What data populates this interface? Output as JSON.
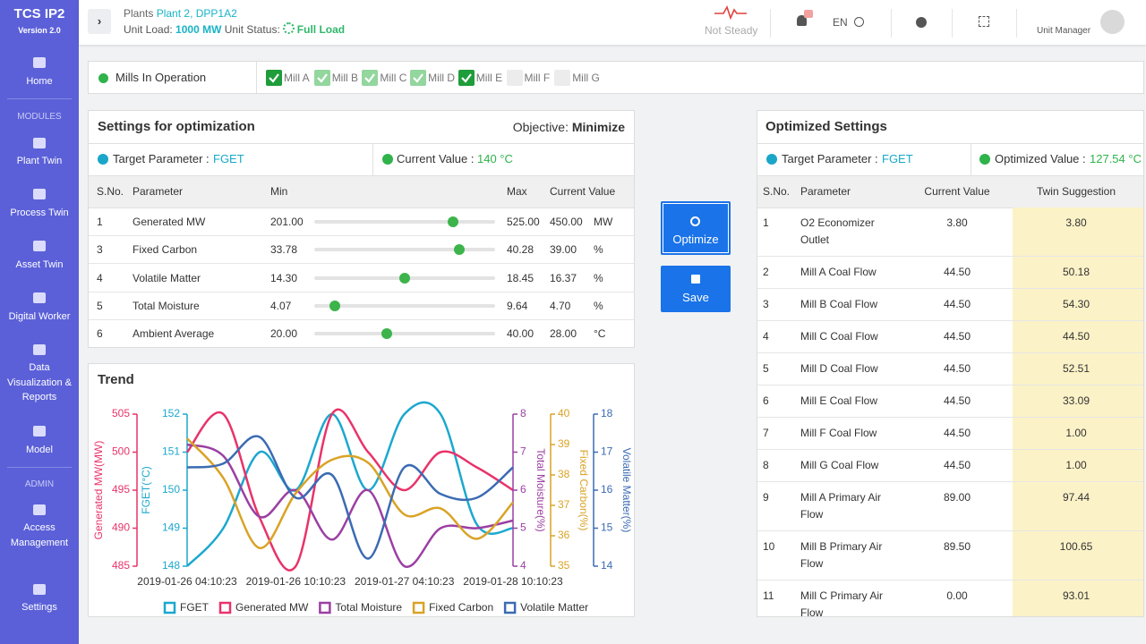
{
  "sidebar": {
    "brand": "TCS IP2",
    "version": "Version 2.0",
    "sections": [
      "MODULES",
      "ADMIN"
    ],
    "items": [
      "Home",
      "Plant Twin",
      "Process Twin",
      "Asset Twin",
      "Digital Worker",
      "Data Visualization & Reports",
      "Model",
      "Access Management",
      "Settings"
    ]
  },
  "header": {
    "plants_label": "Plants",
    "plant": "Plant 2, DPP1A2",
    "unit_load_label": "Unit Load:",
    "unit_load": "1000 MW",
    "unit_status_label": "Unit Status:",
    "unit_status": "Full Load",
    "steady_status": "Not Steady",
    "language": "EN",
    "user": "Unit Manager"
  },
  "mills": {
    "label": "Mills In Operation",
    "items": [
      {
        "label": "Mill A",
        "state": "active"
      },
      {
        "label": "Mill B",
        "state": "checked"
      },
      {
        "label": "Mill C",
        "state": "checked"
      },
      {
        "label": "Mill D",
        "state": "checked"
      },
      {
        "label": "Mill E",
        "state": "active"
      },
      {
        "label": "Mill F",
        "state": "off"
      },
      {
        "label": "Mill G",
        "state": "off"
      }
    ]
  },
  "settings": {
    "title": "Settings for optimization",
    "objective_label": "Objective:",
    "objective": "Minimize",
    "target_label": "Target Parameter :",
    "target": "FGET",
    "current_label": "Current Value :",
    "current": "140 °C",
    "columns": [
      "S.No.",
      "Parameter",
      "Min",
      "Max",
      "Current Value"
    ],
    "rows": [
      {
        "sno": "1",
        "parameter": "Generated MW",
        "min": "201.00",
        "max": "525.00",
        "current": "450.00",
        "unit": "MW"
      },
      {
        "sno": "3",
        "parameter": "Fixed Carbon",
        "min": "33.78",
        "max": "40.28",
        "current": "39.00",
        "unit": "%"
      },
      {
        "sno": "4",
        "parameter": "Volatile Matter",
        "min": "14.30",
        "max": "18.45",
        "current": "16.37",
        "unit": "%"
      },
      {
        "sno": "5",
        "parameter": "Total Moisture",
        "min": "4.07",
        "max": "9.64",
        "current": "4.70",
        "unit": "%"
      },
      {
        "sno": "6",
        "parameter": "Ambient Average",
        "min": "20.00",
        "max": "40.00",
        "current": "28.00",
        "unit": "°C"
      }
    ]
  },
  "buttons": {
    "optimize": "Optimize",
    "save": "Save"
  },
  "optimized": {
    "title": "Optimized Settings",
    "target_label": "Target Parameter :",
    "target": "FGET",
    "value_label": "Optimized Value :",
    "value": "127.54 °C",
    "columns": [
      "S.No.",
      "Parameter",
      "Current Value",
      "Twin Suggestion"
    ],
    "rows": [
      [
        "1",
        "O2 Economizer Outlet",
        "3.80",
        "3.80"
      ],
      [
        "2",
        "Mill A Coal Flow",
        "44.50",
        "50.18"
      ],
      [
        "3",
        "Mill B Coal Flow",
        "44.50",
        "54.30"
      ],
      [
        "4",
        "Mill C Coal Flow",
        "44.50",
        "44.50"
      ],
      [
        "5",
        "Mill D Coal Flow",
        "44.50",
        "52.51"
      ],
      [
        "6",
        "Mill E Coal Flow",
        "44.50",
        "33.09"
      ],
      [
        "7",
        "Mill F Coal Flow",
        "44.50",
        "1.00"
      ],
      [
        "8",
        "Mill G Coal Flow",
        "44.50",
        "1.00"
      ],
      [
        "9",
        "Mill A Primary Air Flow",
        "89.00",
        "97.44"
      ],
      [
        "10",
        "Mill B Primary Air Flow",
        "89.50",
        "100.65"
      ],
      [
        "11",
        "Mill C Primary Air Flow",
        "0.00",
        "93.01"
      ]
    ]
  },
  "chart_data": {
    "type": "line",
    "title": "Trend",
    "categories": [
      "2019-01-26 04:10:23",
      null,
      null,
      "2019-01-26 10:10:23",
      null,
      null,
      "2019-01-27 04:10:23",
      null,
      null,
      "2019-01-28 10:10:23"
    ],
    "series": [
      {
        "name": "FGET",
        "color": "#1ba8cf",
        "ylabel": "FGET(°C)",
        "ylim": [
          148,
          152
        ],
        "yticks": [
          148,
          149,
          150,
          151,
          152
        ],
        "values": [
          148,
          149,
          151,
          150,
          152,
          150,
          152,
          152,
          149.1,
          149
        ]
      },
      {
        "name": "Generated MW",
        "color": "#e8336a",
        "ylabel": "Generated MW(MW)",
        "ylim": [
          485,
          505
        ],
        "yticks": [
          485,
          490,
          495,
          500,
          505
        ],
        "values": [
          500,
          505,
          491.4,
          485,
          505,
          500,
          495,
          500,
          498,
          495
        ]
      },
      {
        "name": "Total Moisture",
        "color": "#9b3fa3",
        "ylabel": "Total Moisture(%)",
        "ylim": [
          4,
          8
        ],
        "yticks": [
          4,
          5,
          6,
          7,
          8
        ],
        "values": [
          7.2,
          6.9,
          5.3,
          6,
          4.7,
          6,
          4,
          5,
          5,
          5.2
        ]
      },
      {
        "name": "Fixed Carbon",
        "color": "#d9a326",
        "ylabel": "Fixed Carbon(%)",
        "ylim": [
          35,
          40
        ],
        "yticks": [
          35,
          36,
          37,
          38,
          39,
          40
        ],
        "values": [
          39.2,
          37.9,
          35.6,
          37.4,
          38.5,
          38.4,
          36.7,
          36.9,
          35.9,
          37.1
        ]
      },
      {
        "name": "Volatile Matter",
        "color": "#3b6bb3",
        "ylabel": "Volatile Matter(%)",
        "ylim": [
          14,
          18
        ],
        "yticks": [
          14,
          15,
          16,
          17,
          18
        ],
        "values": [
          16.6,
          16.7,
          17.4,
          15.8,
          16.4,
          14.2,
          16.6,
          15.9,
          15.8,
          16.6
        ]
      }
    ]
  }
}
